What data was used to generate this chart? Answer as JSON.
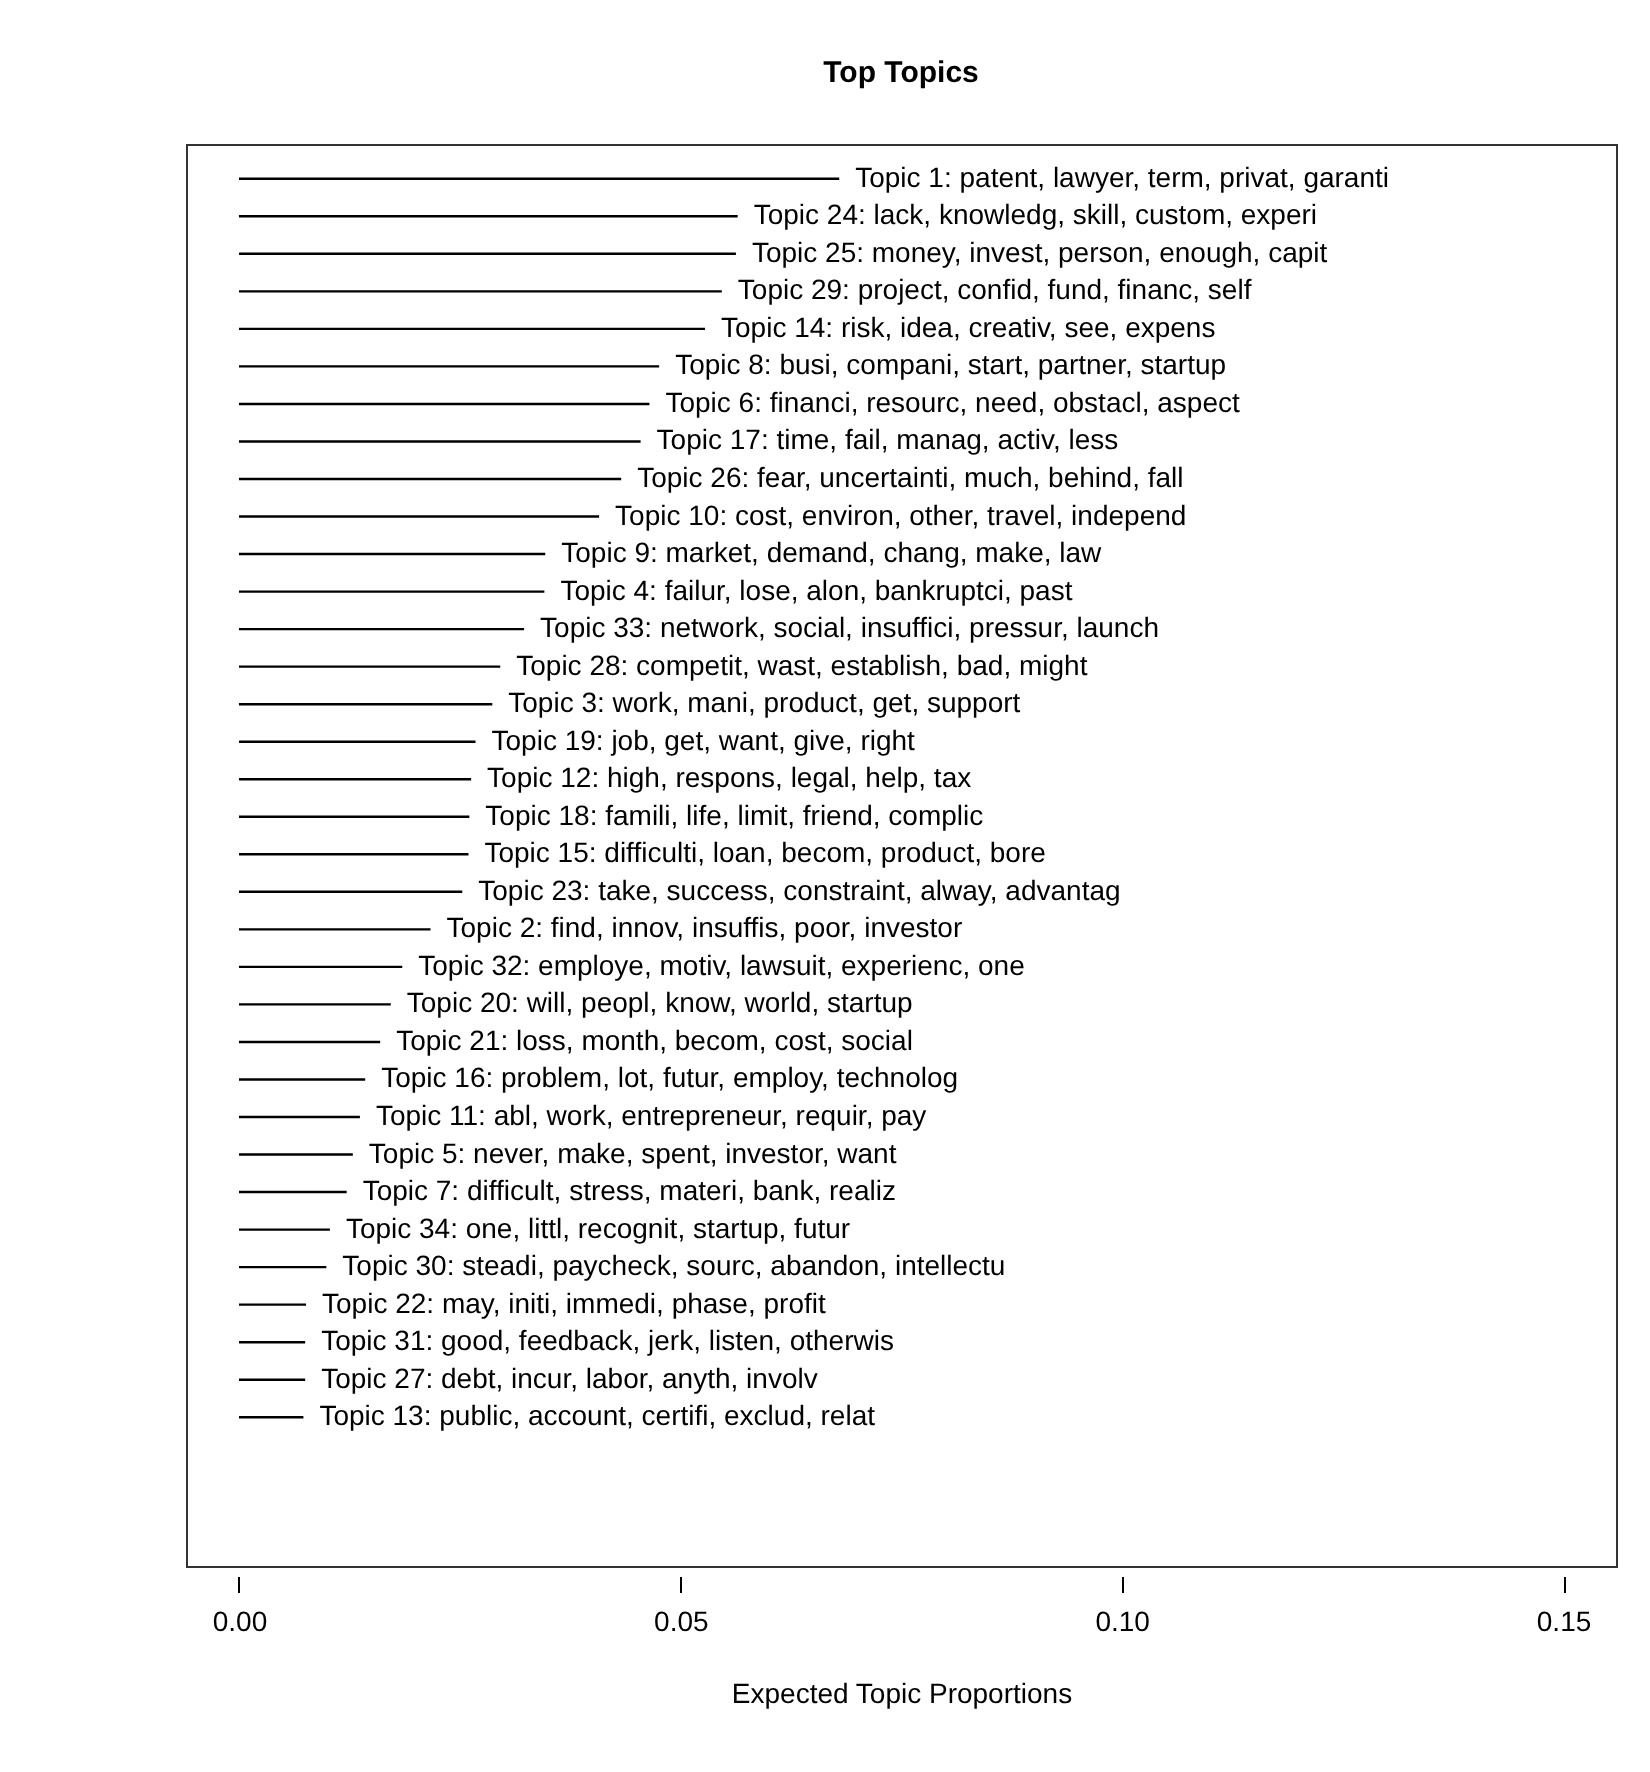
{
  "chart_data": {
    "type": "bar",
    "orientation": "horizontal",
    "title": "Top Topics",
    "xlabel": "Expected Topic Proportions",
    "categories": [
      "Topic 1: patent, lawyer, term, privat, garanti",
      "Topic 24: lack, knowledg, skill, custom, experi",
      "Topic 25: money, invest, person, enough, capit",
      "Topic 29: project, confid, fund, financ, self",
      "Topic 14: risk, idea, creativ, see, expens",
      "Topic 8: busi, compani, start, partner, startup",
      "Topic 6: financi, resourc, need, obstacl, aspect",
      "Topic 17: time, fail, manag, activ, less",
      "Topic 26: fear, uncertainti, much, behind, fall",
      "Topic 10: cost, environ, other, travel, independ",
      "Topic 9: market, demand, chang, make, law",
      "Topic 4: failur, lose, alon, bankruptci, past",
      "Topic 33: network, social, insuffici, pressur, launch",
      "Topic 28: competit, wast, establish, bad, might",
      "Topic 3: work, mani, product, get, support",
      "Topic 19: job, get, want, give, right",
      "Topic 12: high, respons, legal, help, tax",
      "Topic 18: famili, life, limit, friend, complic",
      "Topic 15: difficulti, loan, becom, product, bore",
      "Topic 23: take, success, constraint, alway, advantag",
      "Topic 2: find, innov, insuffis, poor, investor",
      "Topic 32: employe, motiv, lawsuit, experienc, one",
      "Topic 20: will, peopl, know, world, startup",
      "Topic 21: loss, month, becom, cost, social",
      "Topic 16: problem, lot, futur, employ, technolog",
      "Topic 11: abl, work, entrepreneur, requir, pay",
      "Topic 5: never, make, spent, investor, want",
      "Topic 7: difficult, stress, materi, bank, realiz",
      "Topic 34: one, littl, recognit, startup, futur",
      "Topic 30: steadi, paycheck, sourc, abandon, intellectu",
      "Topic 22: may, initi, immedi, phase, profit",
      "Topic 31: good, feedback, jerk, listen, otherwis",
      "Topic 27: debt, incur, labor, anyth, involv",
      "Topic 13: public, account, certifi, exclud, relat"
    ],
    "values": [
      0.068,
      0.0565,
      0.0563,
      0.0547,
      0.0528,
      0.0476,
      0.0465,
      0.0455,
      0.0433,
      0.0408,
      0.0347,
      0.0346,
      0.0323,
      0.0296,
      0.0287,
      0.0268,
      0.0263,
      0.0261,
      0.026,
      0.0253,
      0.0217,
      0.0185,
      0.0172,
      0.016,
      0.0143,
      0.0137,
      0.0129,
      0.0122,
      0.0103,
      0.0099,
      0.0076,
      0.0075,
      0.0075,
      0.0073
    ],
    "color": "#000000",
    "xlim": [
      -0.006,
      0.156
    ],
    "xticks": [
      {
        "value": 0,
        "label": "0.00"
      },
      0.05,
      {
        "value": 0.1,
        "label": "0.10"
      },
      0.15
    ],
    "grid": false
  }
}
